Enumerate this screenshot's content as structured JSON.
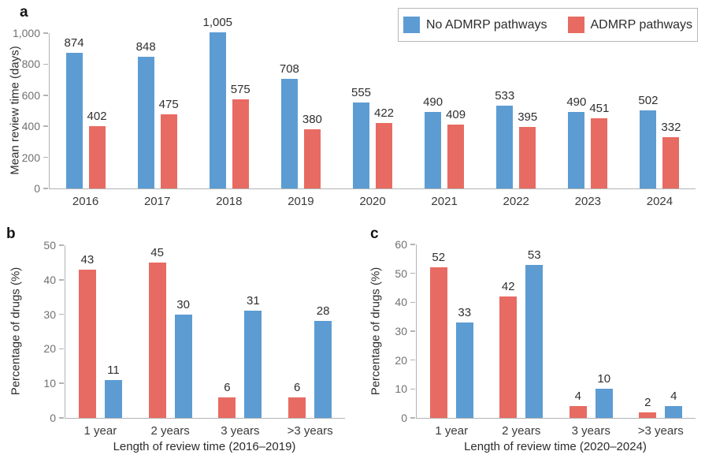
{
  "chart_data": [
    {
      "type": "bar",
      "panel_letter": "a",
      "categories": [
        "2016",
        "2017",
        "2018",
        "2019",
        "2020",
        "2021",
        "2022",
        "2023",
        "2024"
      ],
      "series": [
        {
          "name": "No ADMRP pathways",
          "color": "#5C9CD3",
          "values": [
            874,
            848,
            1005,
            708,
            555,
            490,
            533,
            490,
            502
          ],
          "labels": [
            "874",
            "848",
            "1,005",
            "708",
            "555",
            "490",
            "533",
            "490",
            "502"
          ]
        },
        {
          "name": "ADMRP pathways",
          "color": "#E76B62",
          "values": [
            402,
            475,
            575,
            380,
            422,
            409,
            395,
            451,
            332
          ],
          "labels": [
            "402",
            "475",
            "575",
            "380",
            "422",
            "409",
            "395",
            "451",
            "332"
          ]
        }
      ],
      "xlabel": "",
      "ylabel": "Mean review time (days)",
      "ylim": [
        0,
        1000
      ],
      "yticks": [
        0,
        200,
        400,
        600,
        800,
        1000
      ],
      "ytick_labels": [
        "0",
        "200",
        "400",
        "600",
        "800",
        "1,000"
      ],
      "grid": false,
      "legend": {
        "position": "top-right",
        "items": [
          {
            "label": "No ADMRP pathways",
            "color": "#5C9CD3"
          },
          {
            "label": "ADMRP pathways",
            "color": "#E76B62"
          }
        ]
      }
    },
    {
      "type": "bar",
      "panel_letter": "b",
      "categories": [
        "1 year",
        "2 years",
        "3 years",
        ">3 years"
      ],
      "series": [
        {
          "name": "ADMRP pathways",
          "color": "#E76B62",
          "values": [
            43,
            45,
            6,
            6
          ],
          "labels": [
            "43",
            "45",
            "6",
            "6"
          ]
        },
        {
          "name": "No ADMRP pathways",
          "color": "#5C9CD3",
          "values": [
            11,
            30,
            31,
            28
          ],
          "labels": [
            "11",
            "30",
            "31",
            "28"
          ]
        }
      ],
      "xlabel": "Length of review time (2016–2019)",
      "ylabel": "Percentage of drugs (%)",
      "ylim": [
        0,
        50
      ],
      "yticks": [
        0,
        10,
        20,
        30,
        40,
        50
      ],
      "ytick_labels": [
        "0",
        "10",
        "20",
        "30",
        "40",
        "50"
      ],
      "grid": false
    },
    {
      "type": "bar",
      "panel_letter": "c",
      "categories": [
        "1 year",
        "2 years",
        "3 years",
        ">3 years"
      ],
      "series": [
        {
          "name": "ADMRP pathways",
          "color": "#E76B62",
          "values": [
            52,
            42,
            4,
            2
          ],
          "labels": [
            "52",
            "42",
            "4",
            "2"
          ]
        },
        {
          "name": "No ADMRP pathways",
          "color": "#5C9CD3",
          "values": [
            33,
            53,
            10,
            4
          ],
          "labels": [
            "33",
            "53",
            "10",
            "4"
          ]
        }
      ],
      "xlabel": "Length of review time (2020–2024)",
      "ylabel": "Percentage of drugs (%)",
      "ylim": [
        0,
        60
      ],
      "yticks": [
        0,
        10,
        20,
        30,
        40,
        50,
        60
      ],
      "ytick_labels": [
        "0",
        "10",
        "20",
        "30",
        "40",
        "50",
        "60"
      ],
      "grid": false
    }
  ]
}
